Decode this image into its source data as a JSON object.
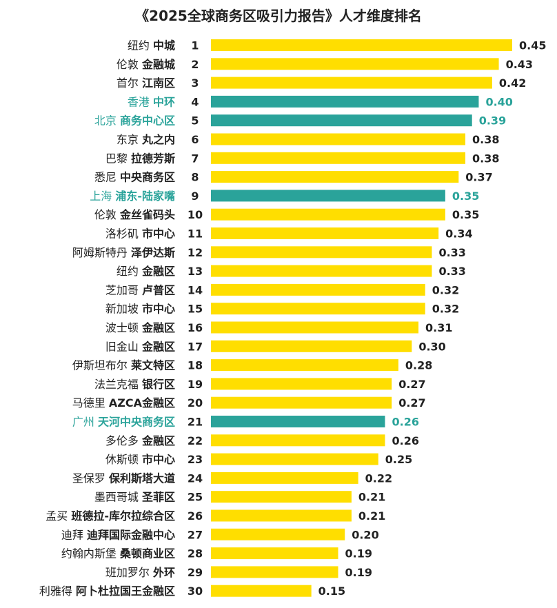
{
  "chart_data": {
    "type": "bar",
    "orientation": "horizontal",
    "title": "《2025全球商务区吸引力报告》人才维度排名",
    "xlim": [
      0,
      0.45
    ],
    "grid": false,
    "legend": "none",
    "colors": {
      "default": "#ffde00",
      "highlight": "#2aa39a",
      "text": "#222222",
      "highlight_text": "#2aa39a"
    },
    "rows": [
      {
        "rank": "1",
        "city": "纽约",
        "district": "中城",
        "value": 0.45,
        "value_label": "0.45",
        "highlight": false
      },
      {
        "rank": "2",
        "city": "伦敦",
        "district": "金融城",
        "value": 0.43,
        "value_label": "0.43",
        "highlight": false
      },
      {
        "rank": "3",
        "city": "首尔",
        "district": "江南区",
        "value": 0.42,
        "value_label": "0.42",
        "highlight": false
      },
      {
        "rank": "4",
        "city": "香港",
        "district": "中环",
        "value": 0.4,
        "value_label": "0.40",
        "highlight": true
      },
      {
        "rank": "5",
        "city": "北京",
        "district": "商务中心区",
        "value": 0.39,
        "value_label": "0.39",
        "highlight": true
      },
      {
        "rank": "6",
        "city": "东京",
        "district": "丸之内",
        "value": 0.38,
        "value_label": "0.38",
        "highlight": false
      },
      {
        "rank": "7",
        "city": "巴黎",
        "district": "拉德芳斯",
        "value": 0.38,
        "value_label": "0.38",
        "highlight": false
      },
      {
        "rank": "8",
        "city": "悉尼",
        "district": "中央商务区",
        "value": 0.37,
        "value_label": "0.37",
        "highlight": false
      },
      {
        "rank": "9",
        "city": "上海",
        "district": "浦东-陆家嘴",
        "value": 0.35,
        "value_label": "0.35",
        "highlight": true
      },
      {
        "rank": "10",
        "city": "伦敦",
        "district": "金丝雀码头",
        "value": 0.35,
        "value_label": "0.35",
        "highlight": false
      },
      {
        "rank": "11",
        "city": "洛杉矶",
        "district": "市中心",
        "value": 0.34,
        "value_label": "0.34",
        "highlight": false
      },
      {
        "rank": "12",
        "city": "阿姆斯特丹",
        "district": "泽伊达斯",
        "value": 0.33,
        "value_label": "0.33",
        "highlight": false
      },
      {
        "rank": "13",
        "city": "纽约",
        "district": "金融区",
        "value": 0.33,
        "value_label": "0.33",
        "highlight": false
      },
      {
        "rank": "14",
        "city": "芝加哥",
        "district": "卢普区",
        "value": 0.32,
        "value_label": "0.32",
        "highlight": false
      },
      {
        "rank": "15",
        "city": "新加坡",
        "district": "市中心",
        "value": 0.32,
        "value_label": "0.32",
        "highlight": false
      },
      {
        "rank": "16",
        "city": "波士顿",
        "district": "金融区",
        "value": 0.31,
        "value_label": "0.31",
        "highlight": false
      },
      {
        "rank": "17",
        "city": "旧金山",
        "district": "金融区",
        "value": 0.3,
        "value_label": "0.30",
        "highlight": false
      },
      {
        "rank": "18",
        "city": "伊斯坦布尔",
        "district": "莱文特区",
        "value": 0.28,
        "value_label": "0.28",
        "highlight": false
      },
      {
        "rank": "19",
        "city": "法兰克福",
        "district": "银行区",
        "value": 0.27,
        "value_label": "0.27",
        "highlight": false
      },
      {
        "rank": "20",
        "city": "马德里",
        "district": "AZCA金融区",
        "value": 0.27,
        "value_label": "0.27",
        "highlight": false
      },
      {
        "rank": "21",
        "city": "广州",
        "district": "天河中央商务区",
        "value": 0.26,
        "value_label": "0.26",
        "highlight": true
      },
      {
        "rank": "22",
        "city": "多伦多",
        "district": "金融区",
        "value": 0.26,
        "value_label": "0.26",
        "highlight": false
      },
      {
        "rank": "23",
        "city": "休斯顿",
        "district": "市中心",
        "value": 0.25,
        "value_label": "0.25",
        "highlight": false
      },
      {
        "rank": "24",
        "city": "圣保罗",
        "district": "保利斯塔大道",
        "value": 0.22,
        "value_label": "0.22",
        "highlight": false
      },
      {
        "rank": "25",
        "city": "墨西哥城",
        "district": "圣菲区",
        "value": 0.21,
        "value_label": "0.21",
        "highlight": false
      },
      {
        "rank": "26",
        "city": "孟买",
        "district": "班德拉-库尔拉综合区",
        "value": 0.21,
        "value_label": "0.21",
        "highlight": false
      },
      {
        "rank": "27",
        "city": "迪拜",
        "district": "迪拜国际金融中心",
        "value": 0.2,
        "value_label": "0.20",
        "highlight": false
      },
      {
        "rank": "28",
        "city": "约翰内斯堡",
        "district": "桑顿商业区",
        "value": 0.19,
        "value_label": "0.19",
        "highlight": false
      },
      {
        "rank": "29",
        "city": "班加罗尔",
        "district": "外环",
        "value": 0.19,
        "value_label": "0.19",
        "highlight": false
      },
      {
        "rank": "30",
        "city": "利雅得",
        "district": "阿卜杜拉国王金融区",
        "value": 0.15,
        "value_label": "0.15",
        "highlight": false
      }
    ]
  }
}
